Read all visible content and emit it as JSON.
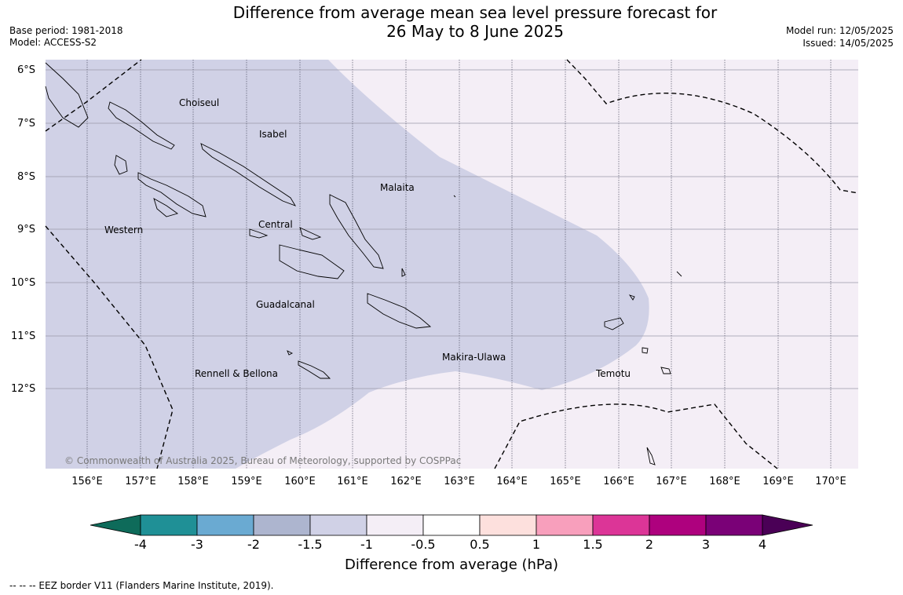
{
  "title_line1": "Difference from average mean sea level pressure forecast for",
  "title_line2": "26 May to 8 June 2025",
  "meta_left": {
    "base_period": "Base period: 1981-2018",
    "model": "Model: ACCESS-S2"
  },
  "meta_right": {
    "model_run": "Model run: 12/05/2025",
    "issued": "Issued: 14/05/2025"
  },
  "copyright": "© Commonwealth of Australia 2025, Bureau of Meteorology, supported by COSPPac",
  "lat_labels": [
    "6°S",
    "7°S",
    "8°S",
    "9°S",
    "10°S",
    "11°S",
    "12°S"
  ],
  "lon_labels": [
    "156°E",
    "157°E",
    "158°E",
    "159°E",
    "160°E",
    "161°E",
    "162°E",
    "163°E",
    "164°E",
    "165°E",
    "166°E",
    "167°E",
    "168°E",
    "169°E",
    "170°E"
  ],
  "places": {
    "choiseul": "Choiseul",
    "isabel": "Isabel",
    "malaita": "Malaita",
    "western": "Western",
    "central": "Central",
    "guadalcanal": "Guadalcanal",
    "makira": "Makira-Ulawa",
    "rennell": "Rennell & Bellona",
    "temotu": "Temotu"
  },
  "colorbar": {
    "title": "Difference from average (hPa)",
    "ticks": [
      "-4",
      "-3",
      "-2",
      "-1.5",
      "-1",
      "-0.5",
      "0.5",
      "1",
      "1.5",
      "2",
      "3",
      "4"
    ],
    "colors": [
      "#0e6b5a",
      "#1f9096",
      "#6aaad2",
      "#adb5cf",
      "#d0d1e6",
      "#f4eef6",
      "#ffffff",
      "#fde0dd",
      "#f89fbc",
      "#dc3597",
      "#ae017e",
      "#7a0177",
      "#4a0056"
    ]
  },
  "footnote": "--  --  -- EEZ border V11 (Flanders Marine Institute, 2019)."
}
